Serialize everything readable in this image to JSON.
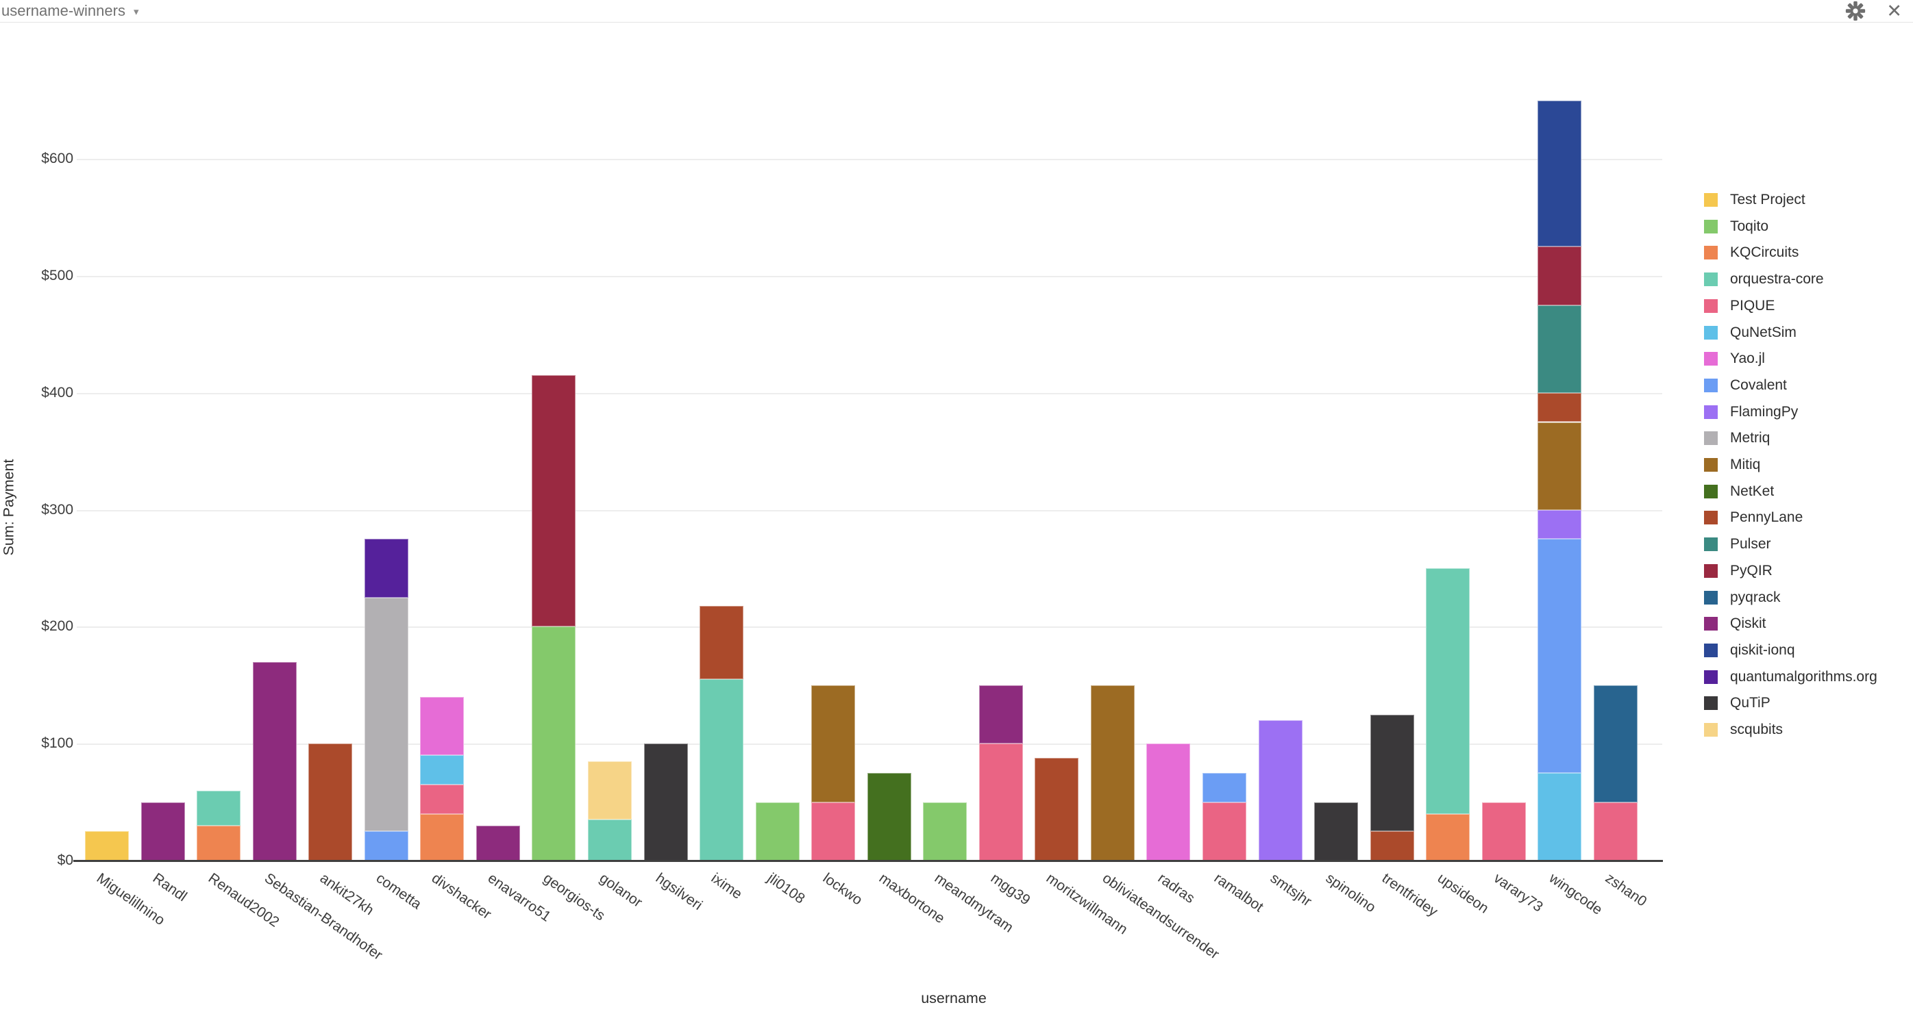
{
  "header": {
    "title": "username-winners",
    "icons": {
      "caret": "▾",
      "close": "✕"
    }
  },
  "chart_data": {
    "type": "bar",
    "stacked": true,
    "title": "",
    "xlabel": "username",
    "ylabel": "Sum: Payment",
    "ylim": [
      0,
      650
    ],
    "grid": true,
    "legend_position": "right",
    "yticks": [
      {
        "value": 0,
        "label": "$0"
      },
      {
        "value": 100,
        "label": "$100"
      },
      {
        "value": 200,
        "label": "$200"
      },
      {
        "value": 300,
        "label": "$300"
      },
      {
        "value": 400,
        "label": "$400"
      },
      {
        "value": 500,
        "label": "$500"
      },
      {
        "value": 600,
        "label": "$600"
      }
    ],
    "legend": [
      {
        "name": "Test Project",
        "color": "#f5c74f"
      },
      {
        "name": "Toqito",
        "color": "#84c96b"
      },
      {
        "name": "KQCircuits",
        "color": "#ee8450"
      },
      {
        "name": "orquestra-core",
        "color": "#6bccb1"
      },
      {
        "name": "PIQUE",
        "color": "#ea6484"
      },
      {
        "name": "QuNetSim",
        "color": "#5fc0e8"
      },
      {
        "name": "Yao.jl",
        "color": "#e66cd6"
      },
      {
        "name": "Covalent",
        "color": "#6b9df4"
      },
      {
        "name": "FlamingPy",
        "color": "#9c70f3"
      },
      {
        "name": "Metriq",
        "color": "#b2b0b3"
      },
      {
        "name": "Mitiq",
        "color": "#9c6b23"
      },
      {
        "name": "NetKet",
        "color": "#44701f"
      },
      {
        "name": "PennyLane",
        "color": "#ab4a2b"
      },
      {
        "name": "Pulser",
        "color": "#3b8a82"
      },
      {
        "name": "PyQIR",
        "color": "#9a2941"
      },
      {
        "name": "pyqrack",
        "color": "#28648f"
      },
      {
        "name": "Qiskit",
        "color": "#8d2b7d"
      },
      {
        "name": "qiskit-ionq",
        "color": "#2b4896"
      },
      {
        "name": "quantumalgorithms.org",
        "color": "#55219b"
      },
      {
        "name": "QuTiP",
        "color": "#3a383a"
      },
      {
        "name": "scqubits",
        "color": "#f6d487"
      }
    ],
    "categories": [
      "Miguelillnino",
      "Randl",
      "Renaud2002",
      "Sebastian-Brandhofer",
      "ankit27kh",
      "cometta",
      "divshacker",
      "enavarro51",
      "georgios-ts",
      "golanor",
      "hgsilveri",
      "ixime",
      "jli0108",
      "lockwo",
      "maxbortone",
      "meandmytram",
      "mgg39",
      "moritzwillmann",
      "obliviateandsurrender",
      "radras",
      "ramalbot",
      "smtsjhr",
      "spinolino",
      "trentfridey",
      "upsideon",
      "varary73",
      "wingcode",
      "zshan0"
    ],
    "bars": [
      {
        "user": "Miguelillnino",
        "segments": [
          {
            "project": "Test Project",
            "value": 25
          }
        ]
      },
      {
        "user": "Randl",
        "segments": [
          {
            "project": "Qiskit",
            "value": 50
          }
        ]
      },
      {
        "user": "Renaud2002",
        "segments": [
          {
            "project": "KQCircuits",
            "value": 30
          },
          {
            "project": "orquestra-core",
            "value": 30
          }
        ]
      },
      {
        "user": "Sebastian-Brandhofer",
        "segments": [
          {
            "project": "Qiskit",
            "value": 170
          }
        ]
      },
      {
        "user": "ankit27kh",
        "segments": [
          {
            "project": "PennyLane",
            "value": 100
          }
        ]
      },
      {
        "user": "cometta",
        "segments": [
          {
            "project": "Covalent",
            "value": 25
          },
          {
            "project": "Metriq",
            "value": 200
          },
          {
            "project": "quantumalgorithms.org",
            "value": 50
          }
        ]
      },
      {
        "user": "divshacker",
        "segments": [
          {
            "project": "KQCircuits",
            "value": 40
          },
          {
            "project": "PIQUE",
            "value": 25
          },
          {
            "project": "QuNetSim",
            "value": 25
          },
          {
            "project": "Yao.jl",
            "value": 50
          }
        ]
      },
      {
        "user": "enavarro51",
        "segments": [
          {
            "project": "Qiskit",
            "value": 30
          }
        ]
      },
      {
        "user": "georgios-ts",
        "segments": [
          {
            "project": "Toqito",
            "value": 200
          },
          {
            "project": "PyQIR",
            "value": 215
          }
        ]
      },
      {
        "user": "golanor",
        "segments": [
          {
            "project": "orquestra-core",
            "value": 35
          },
          {
            "project": "scqubits",
            "value": 50
          }
        ]
      },
      {
        "user": "hgsilveri",
        "segments": [
          {
            "project": "QuTiP",
            "value": 100
          }
        ]
      },
      {
        "user": "ixime",
        "segments": [
          {
            "project": "orquestra-core",
            "value": 155
          },
          {
            "project": "PennyLane",
            "value": 63
          }
        ]
      },
      {
        "user": "jli0108",
        "segments": [
          {
            "project": "Toqito",
            "value": 50
          }
        ]
      },
      {
        "user": "lockwo",
        "segments": [
          {
            "project": "PIQUE",
            "value": 50
          },
          {
            "project": "Mitiq",
            "value": 100
          }
        ]
      },
      {
        "user": "maxbortone",
        "segments": [
          {
            "project": "NetKet",
            "value": 75
          }
        ]
      },
      {
        "user": "meandmytram",
        "segments": [
          {
            "project": "Toqito",
            "value": 50
          }
        ]
      },
      {
        "user": "mgg39",
        "segments": [
          {
            "project": "PIQUE",
            "value": 100
          },
          {
            "project": "Qiskit",
            "value": 50
          }
        ]
      },
      {
        "user": "moritzwillmann",
        "segments": [
          {
            "project": "PennyLane",
            "value": 88
          }
        ]
      },
      {
        "user": "obliviateandsurrender",
        "segments": [
          {
            "project": "Mitiq",
            "value": 150
          }
        ]
      },
      {
        "user": "radras",
        "segments": [
          {
            "project": "Yao.jl",
            "value": 100
          }
        ]
      },
      {
        "user": "ramalbot",
        "segments": [
          {
            "project": "PIQUE",
            "value": 50
          },
          {
            "project": "Covalent",
            "value": 25
          }
        ]
      },
      {
        "user": "smtsjhr",
        "segments": [
          {
            "project": "FlamingPy",
            "value": 120
          }
        ]
      },
      {
        "user": "spinolino",
        "segments": [
          {
            "project": "QuTiP",
            "value": 50
          }
        ]
      },
      {
        "user": "trentfridey",
        "segments": [
          {
            "project": "PennyLane",
            "value": 25
          },
          {
            "project": "QuTiP",
            "value": 100
          }
        ]
      },
      {
        "user": "upsideon",
        "segments": [
          {
            "project": "KQCircuits",
            "value": 40
          },
          {
            "project": "orquestra-core",
            "value": 210
          }
        ]
      },
      {
        "user": "varary73",
        "segments": [
          {
            "project": "PIQUE",
            "value": 50
          }
        ]
      },
      {
        "user": "wingcode",
        "segments": [
          {
            "project": "QuNetSim",
            "value": 75
          },
          {
            "project": "Covalent",
            "value": 200
          },
          {
            "project": "FlamingPy",
            "value": 25
          },
          {
            "project": "Mitiq",
            "value": 75
          },
          {
            "project": "PennyLane",
            "value": 25
          },
          {
            "project": "Pulser",
            "value": 75
          },
          {
            "project": "PyQIR",
            "value": 50
          },
          {
            "project": "qiskit-ionq",
            "value": 125
          }
        ]
      },
      {
        "user": "zshan0",
        "segments": [
          {
            "project": "PIQUE",
            "value": 50
          },
          {
            "project": "pyqrack",
            "value": 100
          }
        ]
      }
    ]
  }
}
